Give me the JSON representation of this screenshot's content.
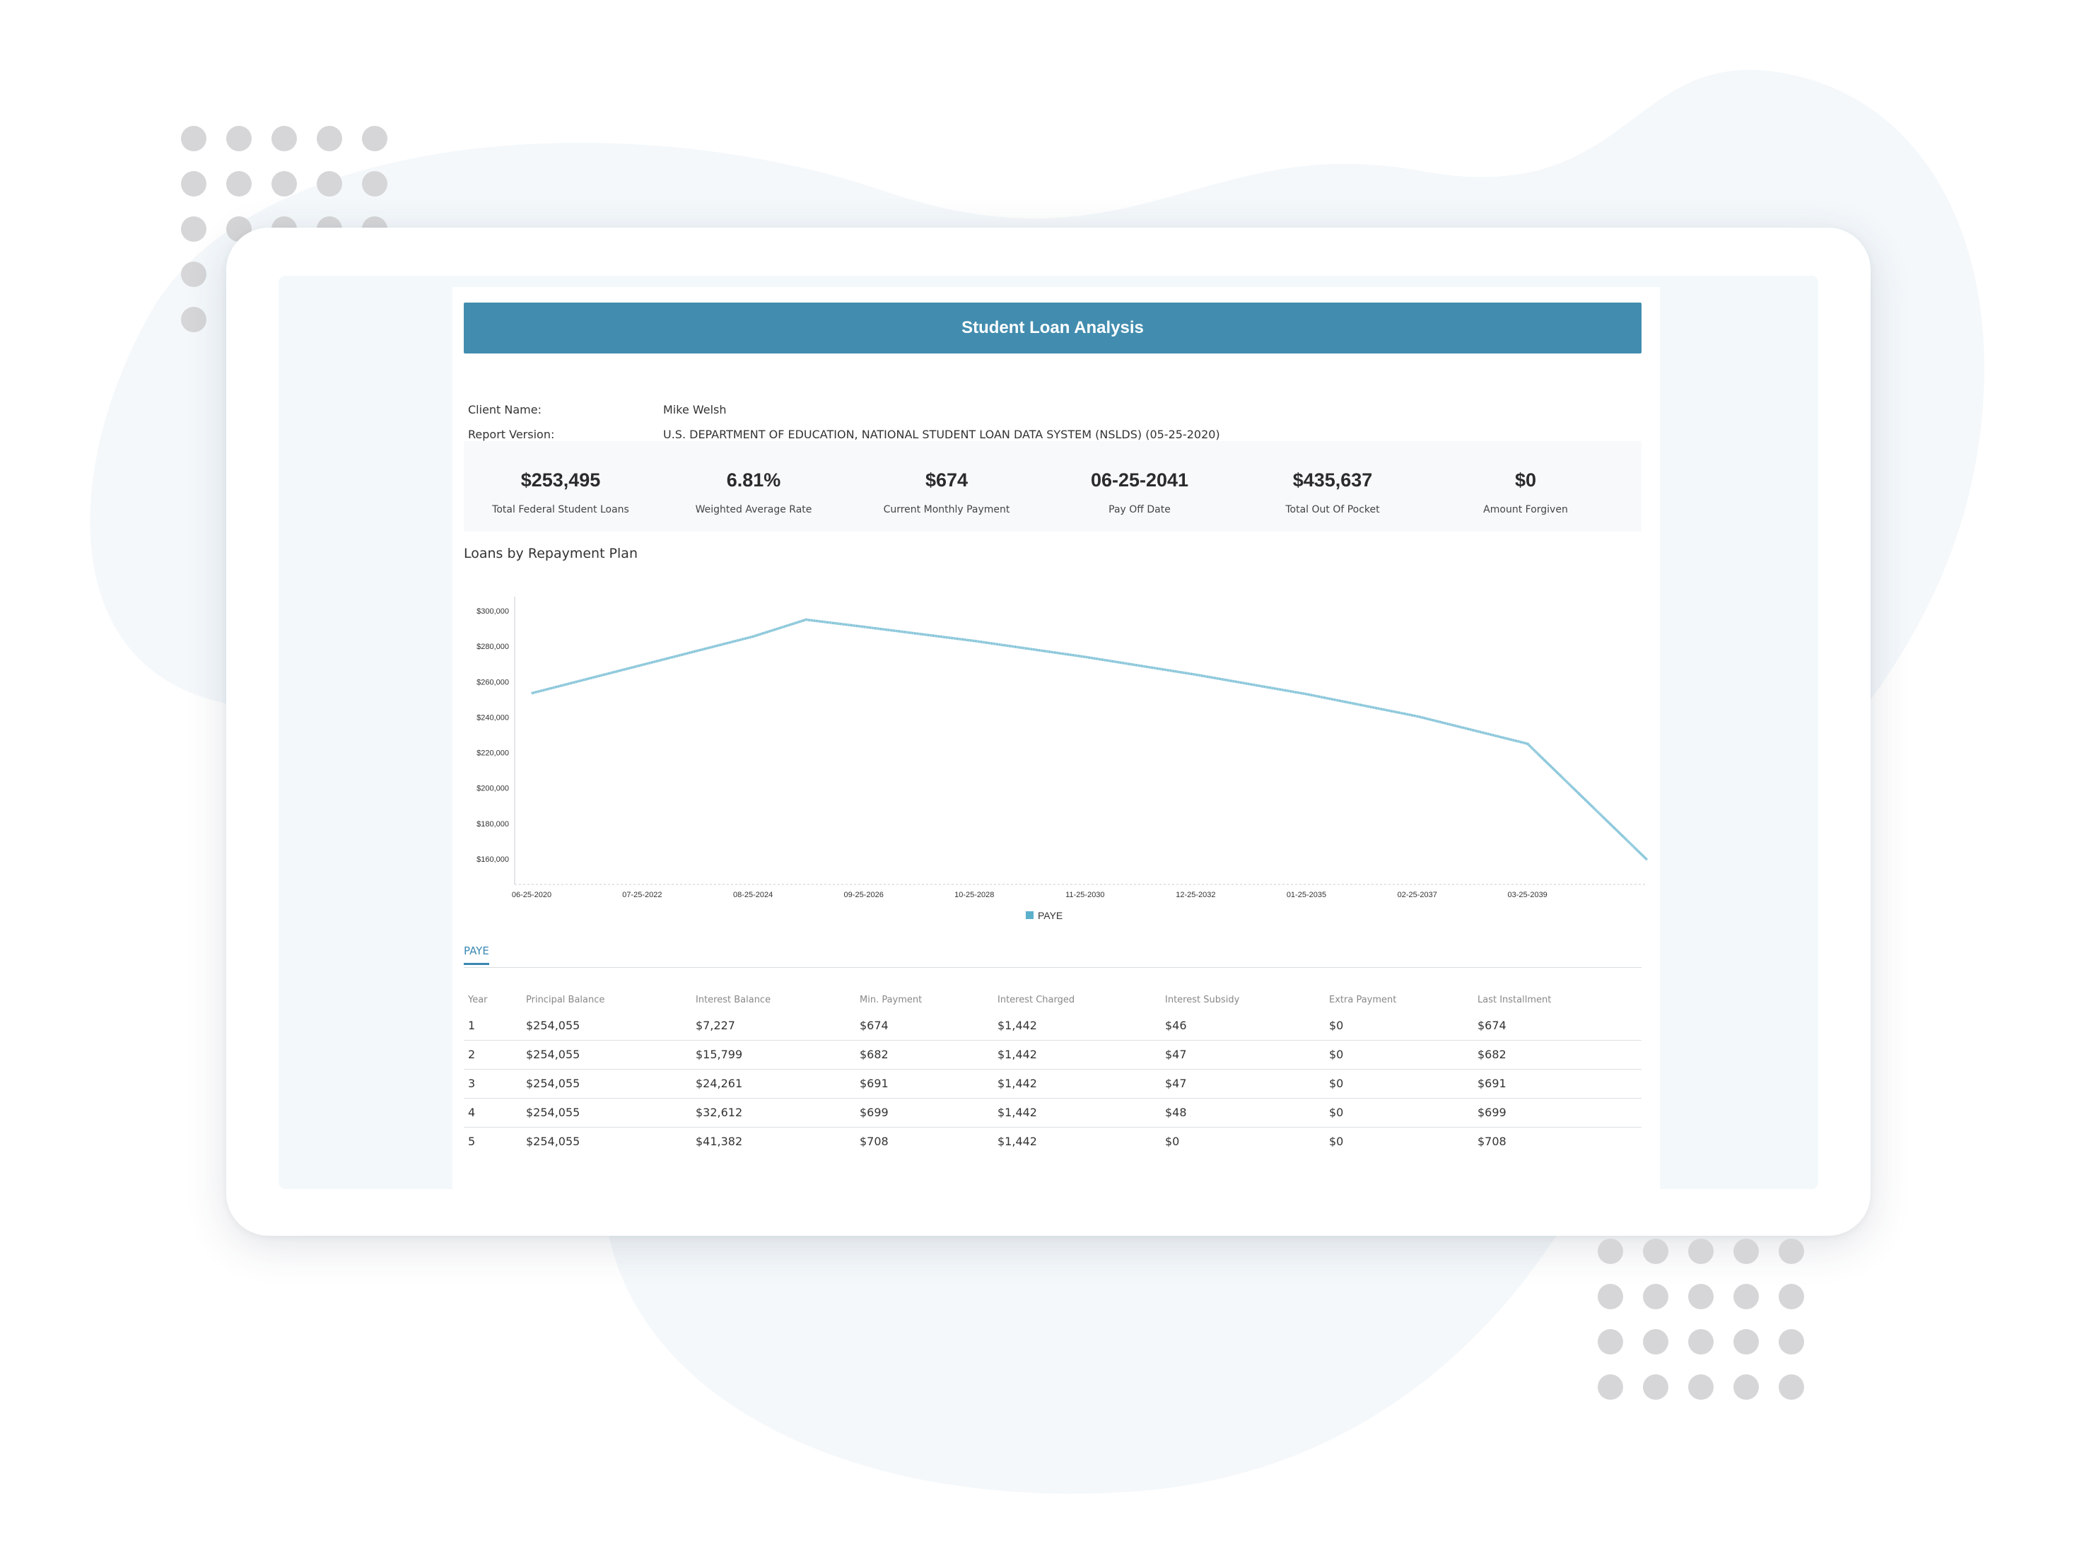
{
  "report": {
    "title": "Student Loan Analysis",
    "client_label": "Client Name:",
    "client_value": "Mike Welsh",
    "version_label": "Report Version:",
    "version_value": "U.S. DEPARTMENT OF EDUCATION, NATIONAL STUDENT LOAN DATA SYSTEM (NSLDS) (05-25-2020)"
  },
  "kpis": [
    {
      "value": "$253,495",
      "label": "Total Federal Student Loans"
    },
    {
      "value": "6.81%",
      "label": "Weighted Average Rate"
    },
    {
      "value": "$674",
      "label": "Current Monthly Payment"
    },
    {
      "value": "06-25-2041",
      "label": "Pay Off Date"
    },
    {
      "value": "$435,637",
      "label": "Total Out Of Pocket"
    },
    {
      "value": "$0",
      "label": "Amount Forgiven"
    }
  ],
  "chart_section": {
    "title": "Loans by Repayment Plan"
  },
  "chart_data": {
    "type": "line",
    "title": "Loans by Repayment Plan",
    "xlabel": "",
    "ylabel": "",
    "x_tick_labels": [
      "06-25-2020",
      "07-25-2022",
      "08-25-2024",
      "09-25-2026",
      "10-25-2028",
      "11-25-2030",
      "12-25-2032",
      "01-25-2035",
      "02-25-2037",
      "03-25-2039"
    ],
    "y_tick_labels": [
      "$300,000",
      "$280,000",
      "$260,000",
      "$240,000",
      "$220,000",
      "$200,000",
      "$180,000",
      "$160,000"
    ],
    "ylim": [
      160000,
      300000
    ],
    "xlim": [
      "06-25-2020",
      "06-25-2041"
    ],
    "series": [
      {
        "name": "PAYE",
        "color": "#5bb0cc",
        "points": [
          [
            "06-25-2020",
            253495
          ],
          [
            "07-25-2022",
            269500
          ],
          [
            "08-25-2024",
            285500
          ],
          [
            "08-25-2025",
            295000
          ],
          [
            "09-25-2026",
            291000
          ],
          [
            "10-25-2028",
            283000
          ],
          [
            "11-25-2030",
            274000
          ],
          [
            "12-25-2032",
            264000
          ],
          [
            "01-25-2035",
            253000
          ],
          [
            "02-25-2037",
            240500
          ],
          [
            "03-25-2039",
            225000
          ],
          [
            "06-25-2041",
            159500
          ]
        ]
      }
    ],
    "grid": false,
    "legend": "bottom-center"
  },
  "tabs": [
    {
      "label": "PAYE"
    }
  ],
  "table": {
    "headers": [
      "Year",
      "Principal Balance",
      "Interest Balance",
      "Min. Payment",
      "Interest Charged",
      "Interest Subsidy",
      "Extra Payment",
      "Last Installment"
    ],
    "rows": [
      [
        "1",
        "$254,055",
        "$7,227",
        "$674",
        "$1,442",
        "$46",
        "$0",
        "$674"
      ],
      [
        "2",
        "$254,055",
        "$15,799",
        "$682",
        "$1,442",
        "$47",
        "$0",
        "$682"
      ],
      [
        "3",
        "$254,055",
        "$24,261",
        "$691",
        "$1,442",
        "$47",
        "$0",
        "$691"
      ],
      [
        "4",
        "$254,055",
        "$32,612",
        "$699",
        "$1,442",
        "$48",
        "$0",
        "$699"
      ],
      [
        "5",
        "$254,055",
        "$41,382",
        "$708",
        "$1,442",
        "$0",
        "$0",
        "$708"
      ]
    ]
  }
}
